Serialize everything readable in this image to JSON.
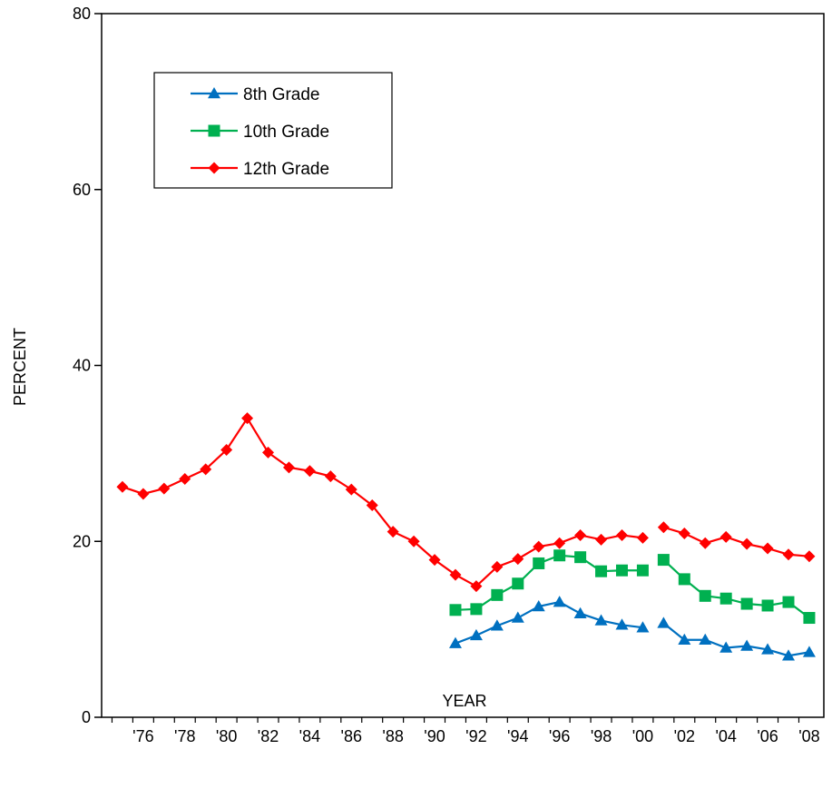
{
  "chart_data": {
    "type": "line",
    "xlabel": "YEAR",
    "ylabel": "PERCENT",
    "ylim": [
      0,
      80
    ],
    "yticks": [
      0,
      20,
      40,
      60,
      80
    ],
    "xlim": [
      1974,
      2008.7
    ],
    "xticks": [
      1976,
      1978,
      1980,
      1982,
      1984,
      1986,
      1988,
      1990,
      1992,
      1994,
      1996,
      1998,
      2000,
      2002,
      2004,
      2006,
      2008
    ],
    "xtick_labels": [
      "'76",
      "'78",
      "'80",
      "'82",
      "'84",
      "'86",
      "'88",
      "'90",
      "'92",
      "'94",
      "'96",
      "'98",
      "'00",
      "'02",
      "'04",
      "'06",
      "'08"
    ],
    "grid": false,
    "legend_position": "top-left",
    "series": [
      {
        "name": "8th Grade",
        "color": "#0070C0",
        "marker": "triangle",
        "segments": [
          {
            "x": [
              1991,
              1992,
              1993,
              1994,
              1995,
              1996,
              1997,
              1998,
              1999,
              2000
            ],
            "y": [
              8.4,
              9.3,
              10.4,
              11.3,
              12.6,
              13.1,
              11.8,
              11.0,
              10.5,
              10.2
            ]
          },
          {
            "x": [
              2001,
              2002,
              2003,
              2004,
              2005,
              2006,
              2007,
              2008
            ],
            "y": [
              10.7,
              8.8,
              8.8,
              7.9,
              8.1,
              7.7,
              7.0,
              7.4
            ]
          }
        ]
      },
      {
        "name": "10th Grade",
        "color": "#00B050",
        "marker": "square",
        "segments": [
          {
            "x": [
              1991,
              1992,
              1993,
              1994,
              1995,
              1996,
              1997,
              1998,
              1999,
              2000
            ],
            "y": [
              12.2,
              12.3,
              13.9,
              15.2,
              17.5,
              18.4,
              18.2,
              16.6,
              16.7,
              16.7
            ]
          },
          {
            "x": [
              2001,
              2002,
              2003,
              2004,
              2005,
              2006,
              2007,
              2008
            ],
            "y": [
              17.9,
              15.7,
              13.8,
              13.5,
              12.9,
              12.7,
              13.1,
              11.3
            ]
          }
        ]
      },
      {
        "name": "12th Grade",
        "color": "#FF0000",
        "marker": "diamond",
        "segments": [
          {
            "x": [
              1975,
              1976,
              1977,
              1978,
              1979,
              1980,
              1981,
              1982,
              1983,
              1984,
              1985,
              1986,
              1987,
              1988,
              1989,
              1990,
              1991,
              1992,
              1993,
              1994,
              1995,
              1996,
              1997,
              1998,
              1999,
              2000
            ],
            "y": [
              26.2,
              25.4,
              26.0,
              27.1,
              28.2,
              30.4,
              34.0,
              30.1,
              28.4,
              28.0,
              27.4,
              25.9,
              24.1,
              21.1,
              20.0,
              17.9,
              16.2,
              14.9,
              17.1,
              18.0,
              19.4,
              19.8,
              20.7,
              20.2,
              20.7,
              20.4
            ]
          },
          {
            "x": [
              2001,
              2002,
              2003,
              2004,
              2005,
              2006,
              2007,
              2008
            ],
            "y": [
              21.6,
              20.9,
              19.8,
              20.5,
              19.7,
              19.2,
              18.5,
              18.3
            ]
          }
        ]
      }
    ]
  }
}
